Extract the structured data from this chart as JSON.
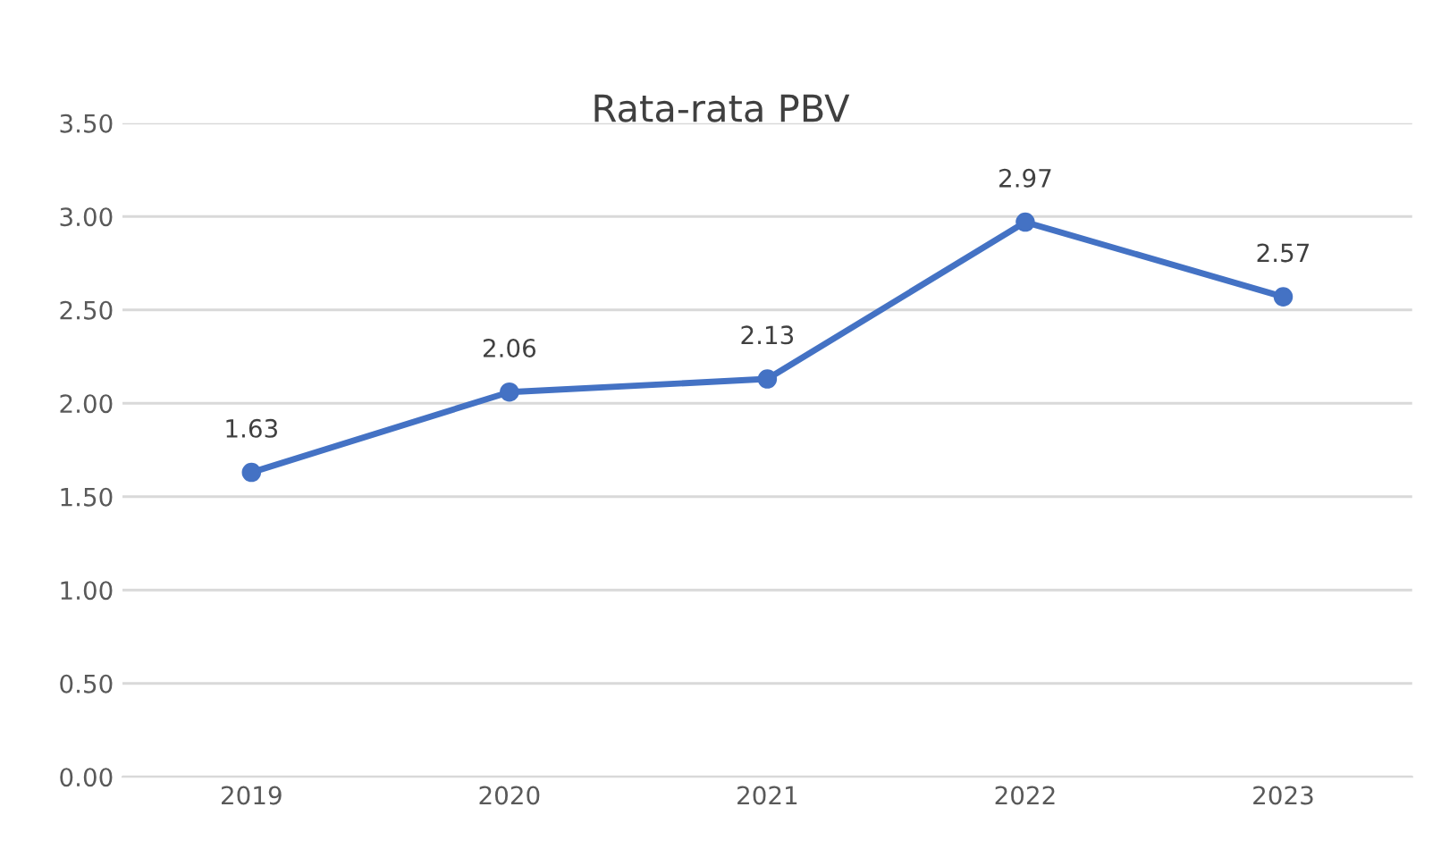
{
  "chart_data": {
    "type": "line",
    "title": "Rata-rata PBV",
    "categories": [
      "2019",
      "2020",
      "2021",
      "2022",
      "2023"
    ],
    "series": [
      {
        "color": "#4472c4",
        "values": [
          1.63,
          2.06,
          2.13,
          2.97,
          2.57
        ]
      }
    ],
    "ylim": [
      0,
      3.5
    ],
    "yticks": [
      {
        "value": 0,
        "label": "0.00"
      },
      {
        "value": 0.5,
        "label": "0.50"
      },
      {
        "value": 1,
        "label": "1.00"
      },
      {
        "value": 1.5,
        "label": "1.50"
      },
      {
        "value": 2,
        "label": "2.00"
      },
      {
        "value": 2.5,
        "label": "2.50"
      },
      {
        "value": 3,
        "label": "3.00"
      },
      {
        "value": 3.5,
        "label": "3.50"
      }
    ],
    "grid": "y",
    "marker": "circle",
    "line_style": "solid",
    "data_labels": true
  }
}
